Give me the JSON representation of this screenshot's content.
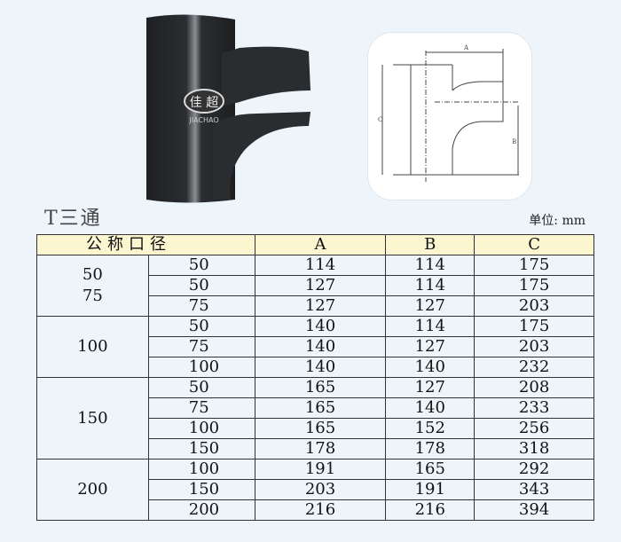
{
  "product_image": {
    "logo_text": "佳超",
    "logo_sub": "JIACHAO"
  },
  "diagram": {
    "labels": {
      "a": "A",
      "b": "B",
      "c": "C"
    }
  },
  "title": "T三通",
  "unit": "单位: mm",
  "table": {
    "headers": [
      "公称口径",
      "A",
      "B",
      "C"
    ],
    "groups": [
      {
        "nominal": [
          "50",
          "75"
        ],
        "rows": [
          [
            "50",
            "114",
            "114",
            "175"
          ],
          [
            "50",
            "127",
            "114",
            "175"
          ],
          [
            "75",
            "127",
            "127",
            "203"
          ]
        ]
      },
      {
        "nominal": [
          "100"
        ],
        "rows": [
          [
            "50",
            "140",
            "114",
            "175"
          ],
          [
            "75",
            "140",
            "127",
            "203"
          ],
          [
            "100",
            "140",
            "140",
            "232"
          ]
        ]
      },
      {
        "nominal": [
          "150"
        ],
        "rows": [
          [
            "50",
            "165",
            "127",
            "208"
          ],
          [
            "75",
            "165",
            "140",
            "233"
          ],
          [
            "100",
            "165",
            "152",
            "256"
          ],
          [
            "150",
            "178",
            "178",
            "318"
          ]
        ]
      },
      {
        "nominal": [
          "200"
        ],
        "rows": [
          [
            "100",
            "191",
            "165",
            "292"
          ],
          [
            "150",
            "203",
            "191",
            "343"
          ],
          [
            "200",
            "216",
            "216",
            "394"
          ]
        ]
      }
    ]
  },
  "colors": {
    "background": "#eef5fa",
    "header_bg": "#fbf6cf",
    "pipe": "#2a2d30"
  }
}
